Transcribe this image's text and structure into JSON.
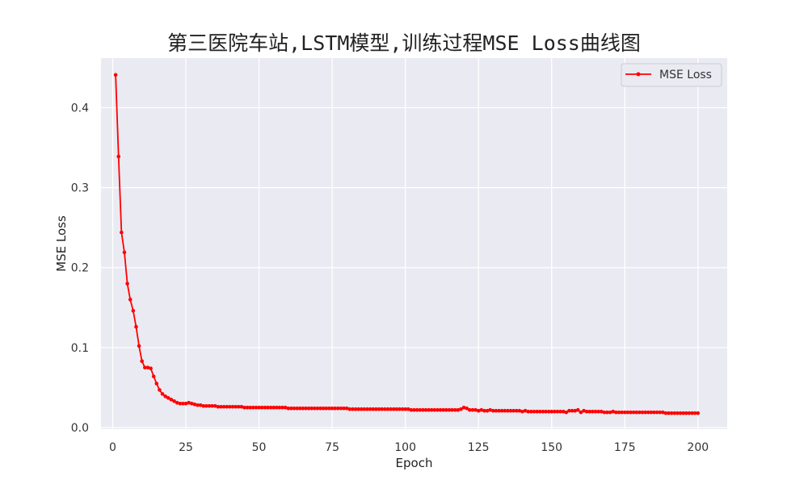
{
  "chart_data": {
    "type": "line",
    "title": "第三医院车站,LSTM模型,训练过程MSE Loss曲线图",
    "xlabel": "Epoch",
    "ylabel": "MSE Loss",
    "xlim": [
      -4,
      210
    ],
    "ylim": [
      -0.002,
      0.462
    ],
    "x_ticks": [
      0,
      25,
      50,
      75,
      100,
      125,
      150,
      175,
      200
    ],
    "y_ticks": [
      0.0,
      0.1,
      0.2,
      0.3,
      0.4
    ],
    "y_tick_labels": [
      "0.0",
      "0.1",
      "0.2",
      "0.3",
      "0.4"
    ],
    "grid": true,
    "legend_position": "top-right",
    "series": [
      {
        "name": "MSE Loss",
        "color": "#ff0000",
        "marker": "circle",
        "x_start": 1,
        "values": [
          0.441,
          0.339,
          0.244,
          0.219,
          0.18,
          0.16,
          0.146,
          0.126,
          0.102,
          0.083,
          0.075,
          0.075,
          0.074,
          0.064,
          0.055,
          0.047,
          0.042,
          0.039,
          0.037,
          0.035,
          0.033,
          0.031,
          0.03,
          0.03,
          0.03,
          0.031,
          0.03,
          0.029,
          0.028,
          0.028,
          0.027,
          0.027,
          0.027,
          0.027,
          0.027,
          0.026,
          0.026,
          0.026,
          0.026,
          0.026,
          0.026,
          0.026,
          0.026,
          0.026,
          0.025,
          0.025,
          0.025,
          0.025,
          0.025,
          0.025,
          0.025,
          0.025,
          0.025,
          0.025,
          0.025,
          0.025,
          0.025,
          0.025,
          0.025,
          0.024,
          0.024,
          0.024,
          0.024,
          0.024,
          0.024,
          0.024,
          0.024,
          0.024,
          0.024,
          0.024,
          0.024,
          0.024,
          0.024,
          0.024,
          0.024,
          0.024,
          0.024,
          0.024,
          0.024,
          0.024,
          0.023,
          0.023,
          0.023,
          0.023,
          0.023,
          0.023,
          0.023,
          0.023,
          0.023,
          0.023,
          0.023,
          0.023,
          0.023,
          0.023,
          0.023,
          0.023,
          0.023,
          0.023,
          0.023,
          0.023,
          0.023,
          0.022,
          0.022,
          0.022,
          0.022,
          0.022,
          0.022,
          0.022,
          0.022,
          0.022,
          0.022,
          0.022,
          0.022,
          0.022,
          0.022,
          0.022,
          0.022,
          0.022,
          0.023,
          0.025,
          0.024,
          0.022,
          0.022,
          0.022,
          0.021,
          0.022,
          0.021,
          0.021,
          0.022,
          0.021,
          0.021,
          0.021,
          0.021,
          0.021,
          0.021,
          0.021,
          0.021,
          0.021,
          0.021,
          0.02,
          0.021,
          0.02,
          0.02,
          0.02,
          0.02,
          0.02,
          0.02,
          0.02,
          0.02,
          0.02,
          0.02,
          0.02,
          0.02,
          0.02,
          0.019,
          0.021,
          0.021,
          0.021,
          0.022,
          0.019,
          0.021,
          0.02,
          0.02,
          0.02,
          0.02,
          0.02,
          0.02,
          0.019,
          0.019,
          0.019,
          0.02,
          0.019,
          0.019,
          0.019,
          0.019,
          0.019,
          0.019,
          0.019,
          0.019,
          0.019,
          0.019,
          0.019,
          0.019,
          0.019,
          0.019,
          0.019,
          0.019,
          0.019,
          0.018,
          0.018,
          0.018,
          0.018,
          0.018,
          0.018,
          0.018,
          0.018,
          0.018,
          0.018,
          0.018,
          0.018
        ]
      }
    ]
  }
}
